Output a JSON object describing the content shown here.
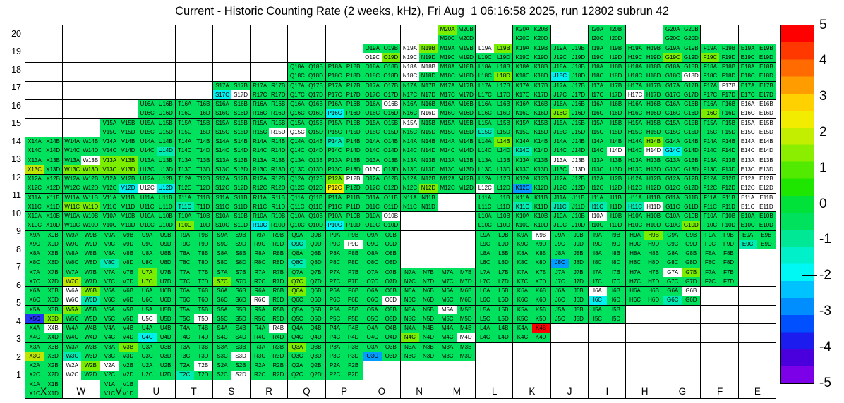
{
  "chart_data": {
    "type": "heatmap",
    "title": "Current - Historic Counting Rate (2 weeks, kHz), Fri Aug  1 06:16:58 2025, run 12802 subrun 42",
    "x_categories": [
      "X",
      "W",
      "V",
      "U",
      "T",
      "S",
      "R",
      "Q",
      "P",
      "O",
      "N",
      "M",
      "L",
      "K",
      "J",
      "I",
      "H",
      "G",
      "F",
      "E"
    ],
    "y_categories": [
      20,
      19,
      18,
      17,
      16,
      15,
      14,
      13,
      12,
      11,
      10,
      9,
      8,
      7,
      6,
      5,
      4,
      3,
      2,
      1
    ],
    "channel_suffixes": [
      "A",
      "B",
      "C",
      "D"
    ],
    "grid": {
      "gridlines": true,
      "empty_cell_color": "#FFFFFF"
    },
    "palette": {
      "g": "#00E25E",
      "l": "#7BEE00",
      "Y": "#BEE600",
      "y": "#FFED00",
      "t": "#00EBB0",
      "c": "#00F2F0",
      "B": "#009CFF",
      "b": "#2236F5",
      "r": "#FF0000",
      "w": "#FFFFFF"
    },
    "palette_approx_value": {
      "g": 0,
      "l": 0.5,
      "Y": 1.2,
      "y": 1.8,
      "t": -0.6,
      "c": -1.4,
      "B": -2.2,
      "b": -3.2,
      "r": 5,
      "w": null
    },
    "colorbar": {
      "min": -5,
      "max": 5,
      "ticks": [
        "5",
        "4",
        "3",
        "2",
        "1",
        "0",
        "-1",
        "-2",
        "-3",
        "-4",
        "-5"
      ],
      "bands_top_to_bottom": [
        "#FF0000",
        "#FF3800",
        "#FF6B00",
        "#FF9C00",
        "#FFD100",
        "#F2EC00",
        "#C3EE00",
        "#8BEE00",
        "#52EA00",
        "#1FE600",
        "#00E23A",
        "#00E25E",
        "#00E896",
        "#00F0CA",
        "#00F8F4",
        "#00C2FF",
        "#008EFF",
        "#0050FF",
        "#1C1CEE",
        "#4A00DC",
        "#7C00E8"
      ]
    },
    "cells": [
      [
        null,
        null,
        null,
        null,
        null,
        null,
        null,
        null,
        null,
        null,
        null,
        "lggg",
        null,
        "gggg",
        null,
        "gggg",
        null,
        "gggg",
        null,
        null
      ],
      [
        null,
        null,
        null,
        null,
        null,
        null,
        null,
        null,
        null,
        "ggwl",
        "wlwg",
        "gggg",
        "wlgg",
        "gggg",
        "gggg",
        "gggg",
        "gggg",
        "gglg",
        "gglg",
        "gggg"
      ],
      [
        null,
        null,
        null,
        null,
        null,
        null,
        null,
        "gggg",
        "gggg",
        "gggg",
        "wwwg",
        "gggg",
        "gggl",
        "gggg",
        "ggcg",
        "gggg",
        "gggg",
        "gggw",
        "gggg",
        "gggg"
      ],
      [
        null,
        null,
        null,
        null,
        null,
        "ggcw",
        "gggg",
        "gggg",
        "gggg",
        "gggg",
        "gggg",
        "gggg",
        "gggg",
        "gggg",
        "gggg",
        "gggg",
        "ggwg",
        "gggg",
        "gwgg",
        "gggg"
      ],
      [
        null,
        null,
        null,
        "gggg",
        "gggg",
        "gggg",
        "gggg",
        "gggg",
        "ggcg",
        "gwgg",
        "gggw",
        "gggg",
        "gggg",
        "gggg",
        "gglg",
        "gggg",
        "gggg",
        "gggg",
        "gglg",
        "wwww"
      ],
      [
        null,
        null,
        "gggg",
        "gggg",
        "gggg",
        "gggg",
        "gggw",
        "ggwg",
        "gggg",
        "gggg",
        "wggg",
        "gggg",
        "ggtg",
        "gggg",
        "gggg",
        "gggg",
        "gggg",
        "gggg",
        "gggg",
        "wwww"
      ],
      [
        "gggg",
        "gggg",
        "gggg",
        "gggt",
        "gggg",
        "gggg",
        "gggg",
        "gggg",
        "tggg",
        "gggg",
        "gggg",
        "gggg",
        "glgg",
        "ggtg",
        "gggg",
        "gggw",
        "glgw",
        "ggcg",
        "gggg",
        "wwww"
      ],
      [
        "ggYg",
        "gwll",
        "llll",
        "gggg",
        "gggg",
        "gggg",
        "gggg",
        "gggg",
        "gggg",
        "ggwg",
        "gggg",
        "gggg",
        "gggg",
        "gggg",
        "wwgw",
        "gggg",
        "gggg",
        "gggg",
        "gggg",
        "wwww"
      ],
      [
        "gggg",
        "gggg",
        "gggc",
        "ggwc",
        "gggg",
        "gggg",
        "gggg",
        "gggg",
        "lwyg",
        "gggg",
        "gggl",
        "gggg",
        "ggwg",
        "ggBg",
        "gggg",
        "gggg",
        "gggg",
        "gggg",
        "gggg",
        "wwww"
      ],
      [
        "gggg",
        "ggll",
        "gggg",
        "gggg",
        "ggtg",
        "gggg",
        "gggg",
        "gggg",
        "gggg",
        "gggg",
        "gggg",
        null,
        "gggg",
        "ggtg",
        "ggtg",
        "ggtg",
        "ggtw",
        "gggg",
        "gggg",
        "wwww"
      ],
      [
        "gggg",
        "gggg",
        "gggg",
        "gggg",
        "gglg",
        "gggg",
        "ggcg",
        "gggg",
        "ggcg",
        "gwgg",
        null,
        null,
        "gggg",
        "gggg",
        "gggg",
        "wggg",
        "gggg",
        "gggl",
        "gggg",
        "gggg"
      ],
      [
        "gggg",
        "gggg",
        "gggg",
        "gggg",
        "gggg",
        "gggg",
        "gggg",
        "ggtg",
        "gggw",
        "gggg",
        null,
        null,
        "gggg",
        "gwgg",
        "gggg",
        "gggg",
        "glgg",
        "gggg",
        "gggg",
        "ggtg"
      ],
      [
        "gggg",
        "gggg",
        "ggtg",
        "gggg",
        "gggg",
        "gggg",
        "gggg",
        "ggtg",
        "gggg",
        "gggg",
        null,
        null,
        "gggg",
        "gggg",
        "ggBg",
        "gggg",
        "gggg",
        "gggg",
        "gggg",
        null
      ],
      [
        "gggg",
        "ggYg",
        "gggg",
        "lglg",
        "gggg",
        "gglg",
        "gggg",
        "gglg",
        "gggg",
        "gggg",
        "gggg",
        "gggg",
        "gggg",
        "gggg",
        "gggg",
        "gggg",
        "gggg",
        "wlgg",
        "gggg",
        null
      ],
      [
        "gggg",
        "wlwt",
        "gggg",
        "gggg",
        "gggg",
        "gggg",
        "ggwg",
        "lggg",
        "gggg",
        "gggw",
        "gggg",
        "gggg",
        "gggg",
        "gggg",
        "gggg",
        "wgcg",
        "gggg",
        "gwtg",
        null,
        null
      ],
      [
        "ggbl",
        "lggg",
        "gggg",
        "ggwg",
        "gggw",
        "gggg",
        "gggg",
        "gggg",
        "gggg",
        "gggg",
        "gggg",
        "wggg",
        "gggg",
        "gggg",
        "gggg",
        "gggg",
        null,
        null,
        null,
        null
      ],
      [
        "gwgg",
        "gggg",
        "gggg",
        "ggcg",
        "gggg",
        "gggg",
        "gwgg",
        "gggg",
        "gggg",
        "gggg",
        "gglg",
        "gggw",
        "gggg",
        "grgg",
        null,
        null,
        null,
        null,
        null,
        null
      ],
      [
        "ggYg",
        "ggtg",
        "glgg",
        "gggg",
        "gggg",
        "gggw",
        "gggg",
        "lggg",
        "gggg",
        "ggBg",
        "gggg",
        "gggg",
        null,
        null,
        null,
        null,
        null,
        null,
        null,
        null
      ],
      [
        "gggg",
        "wlwg",
        "wggg",
        "gggg",
        "gwtg",
        "gggw",
        "gggg",
        "gggg",
        "gggg",
        null,
        null,
        null,
        null,
        null,
        null,
        null,
        null,
        null,
        null,
        null
      ],
      [
        "gggg",
        null,
        "gggg",
        null,
        null,
        null,
        null,
        null,
        null,
        null,
        null,
        null,
        null,
        null,
        null,
        null,
        null,
        null,
        null,
        null
      ]
    ]
  }
}
